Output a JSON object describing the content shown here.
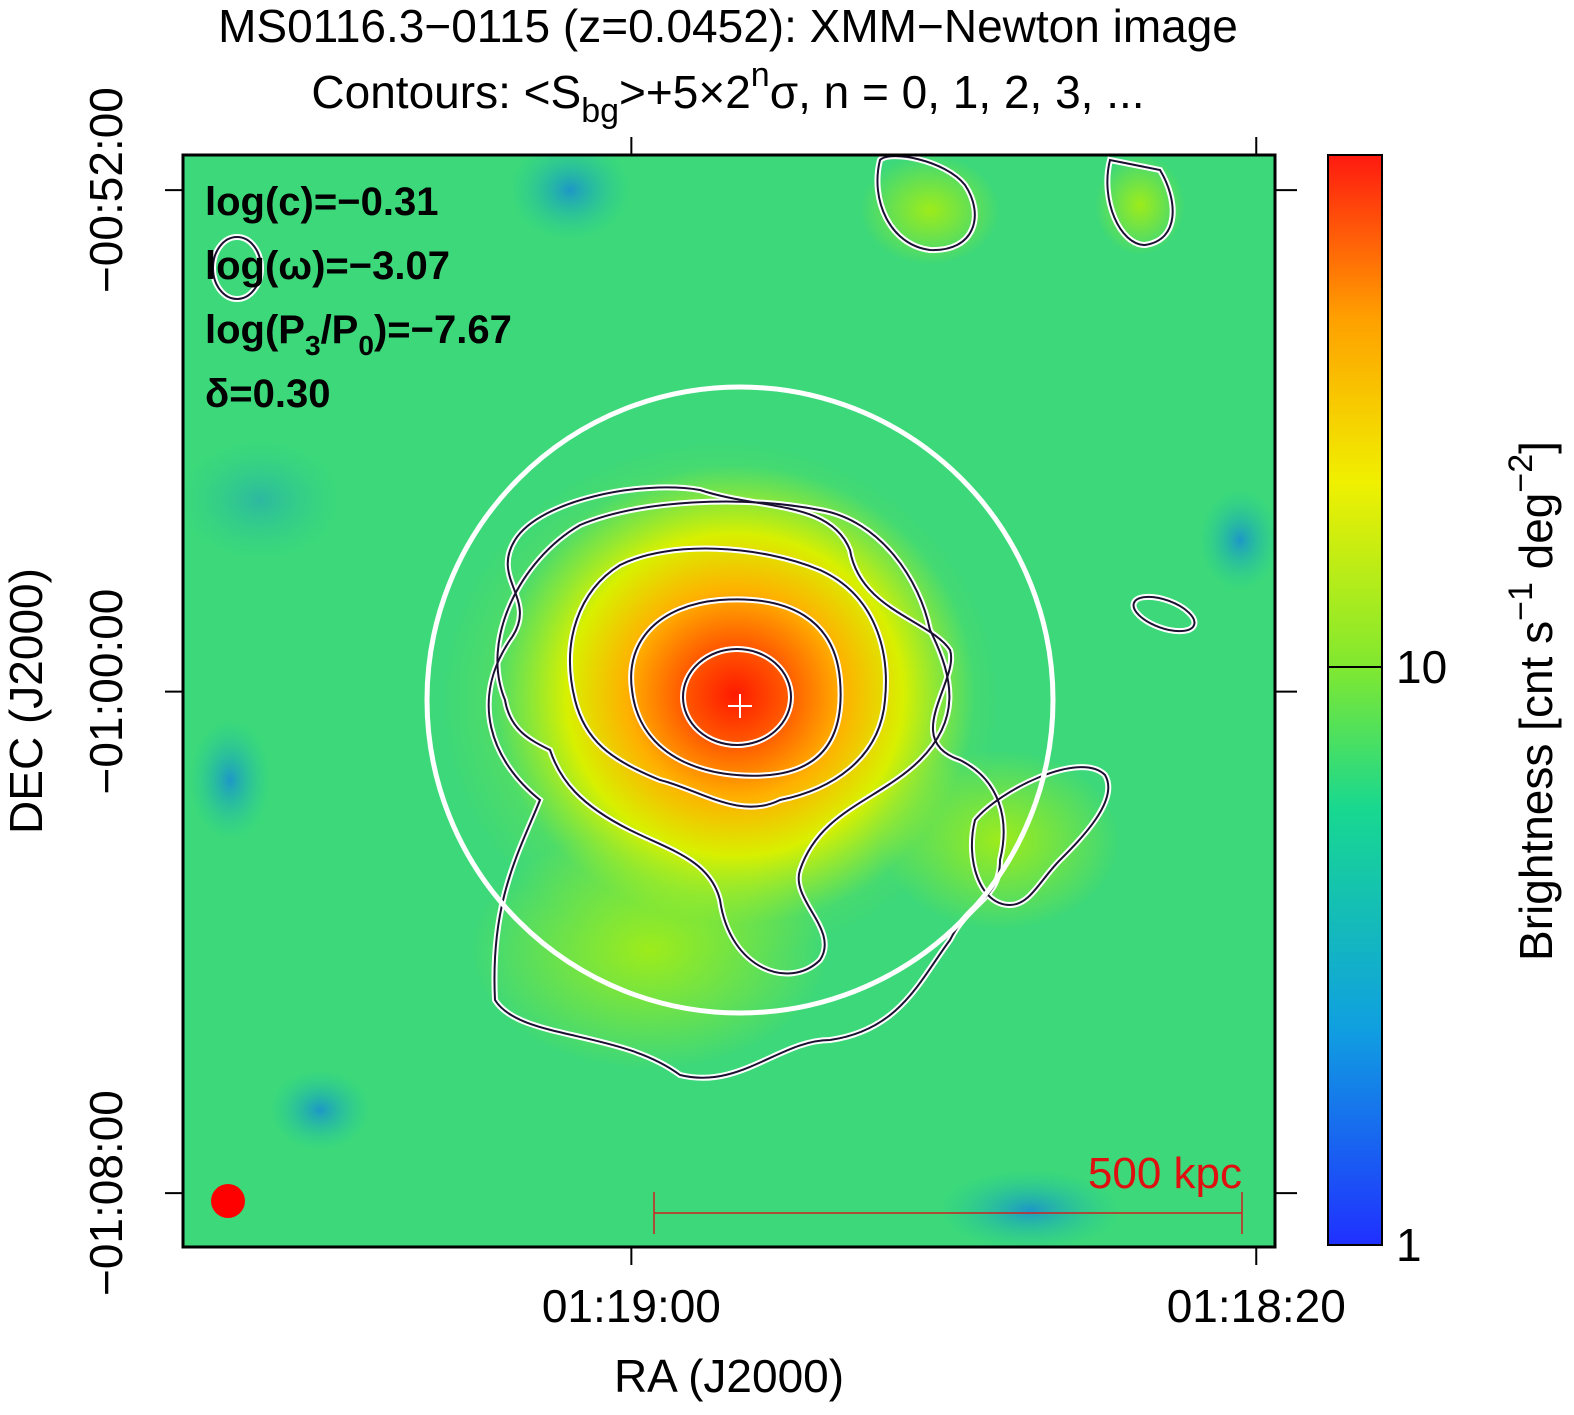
{
  "chart_data": {
    "type": "image",
    "title": "MS0116.3−0115 (z=0.0452): XMM−Newton image",
    "subtitle": [
      "Contours: <S",
      "bg",
      ">+5×2",
      "n",
      "σ, n = 0, 1, 2, 3, ..."
    ],
    "xlabel": "RA (J2000)",
    "ylabel": "DEC (J2000)",
    "xlim": [
      4768.7,
      4698.8
    ],
    "xticks": [
      {
        "value": 4740,
        "label": "01:19:00"
      },
      {
        "value": 4700,
        "label": "01:18:20"
      }
    ],
    "ylim": [
      -68.86,
      -51.44
    ],
    "yticks": [
      {
        "value": -52,
        "label": "−00:52:00"
      },
      {
        "value": -60,
        "label": "−01:00:00"
      },
      {
        "value": -68,
        "label": "−01:08:00"
      }
    ],
    "colorbar": {
      "label": [
        "Brightness [cnt s",
        "−1",
        " deg",
        "−2",
        "]"
      ],
      "log": true,
      "lim": [
        1,
        76.9
      ],
      "ticks": [
        1,
        10
      ]
    },
    "annotations": [
      [
        "log(c)=−0.31"
      ],
      [
        "log(ω)=−3.07"
      ],
      [
        "log(P",
        "3",
        "/P",
        "0",
        ")=−7.67"
      ],
      [
        "δ=0.30"
      ]
    ],
    "scale_bar": "500 kpc"
  }
}
